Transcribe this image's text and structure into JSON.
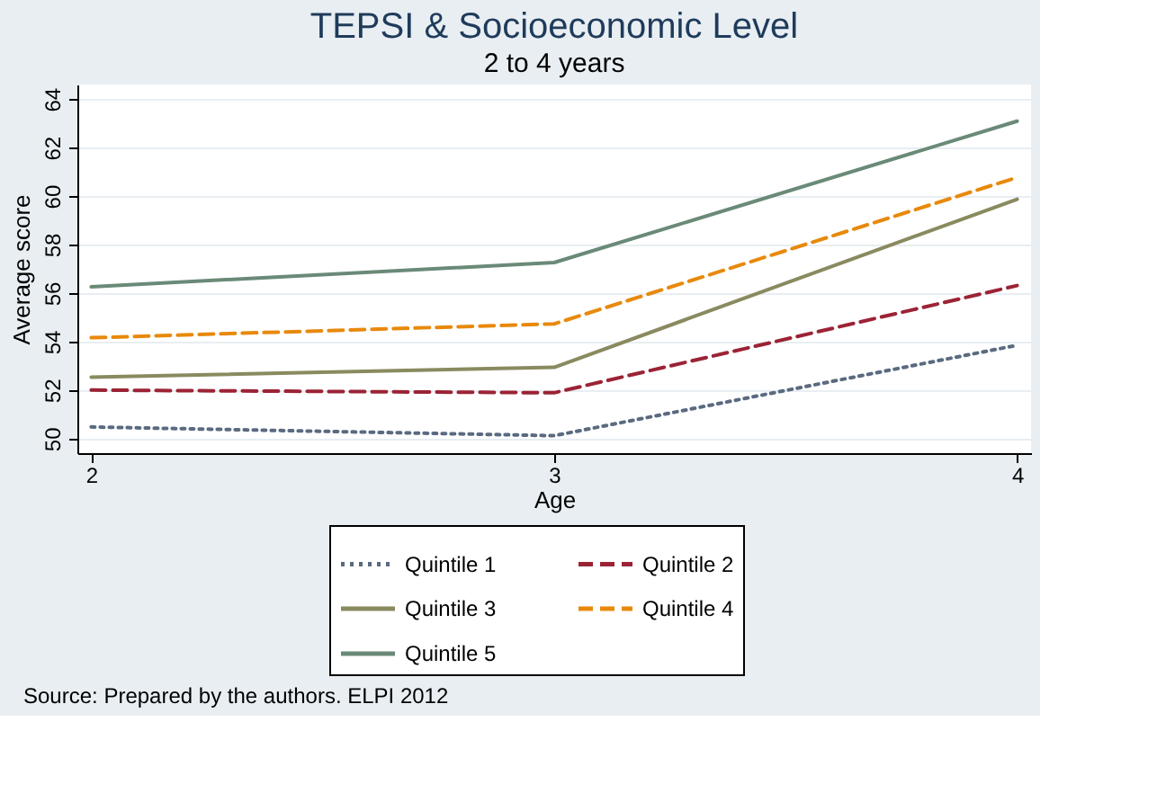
{
  "chart_data": {
    "type": "line",
    "title": "TEPSI & Socioeconomic Level",
    "subtitle": "2 to 4 years",
    "xlabel": "Age",
    "ylabel": "Average score",
    "x": [
      2,
      3,
      4
    ],
    "series": [
      {
        "name": "Quintile 1",
        "color": "#5a6a80",
        "line_style": "dotted",
        "values": [
          50.48,
          50.12,
          53.85
        ]
      },
      {
        "name": "Quintile 2",
        "color": "#9b2335",
        "line_style": "dashed",
        "values": [
          52.0,
          51.89,
          56.31
        ]
      },
      {
        "name": "Quintile 3",
        "color": "#8a8a60",
        "line_style": "solid",
        "values": [
          52.53,
          52.94,
          59.87
        ]
      },
      {
        "name": "Quintile 4",
        "color": "#e8890c",
        "line_style": "dashed",
        "values": [
          54.16,
          54.73,
          60.77
        ]
      },
      {
        "name": "Quintile 5",
        "color": "#6a8a78",
        "line_style": "solid",
        "values": [
          56.26,
          57.26,
          63.09
        ]
      }
    ],
    "xlim": [
      1.97,
      4.03
    ],
    "xticks": [
      2,
      3,
      4
    ],
    "ylim": [
      49.4,
      64.6
    ],
    "yticks": [
      50,
      52,
      54,
      56,
      58,
      60,
      62,
      64
    ],
    "grid": "y",
    "legend": "bottom",
    "marker": "none",
    "annotations": [
      "Source: Prepared by the authors. ELPI 2012"
    ]
  }
}
